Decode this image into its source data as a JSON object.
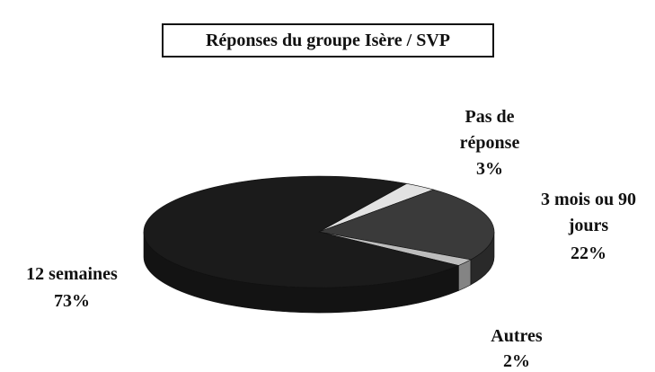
{
  "chart_data": {
    "type": "pie",
    "title": "Réponses du groupe Isère / SVP",
    "categories": [
      "Pas de réponse",
      "3 mois ou 90 jours",
      "Autres",
      "12 semaines"
    ],
    "values": [
      3,
      22,
      2,
      73
    ],
    "value_labels": [
      "3%",
      "22%",
      "2%",
      "73%"
    ],
    "colors": [
      "#e2e2e2",
      "#3a3a3a",
      "#bdbdbd",
      "#1b1b1b"
    ]
  }
}
